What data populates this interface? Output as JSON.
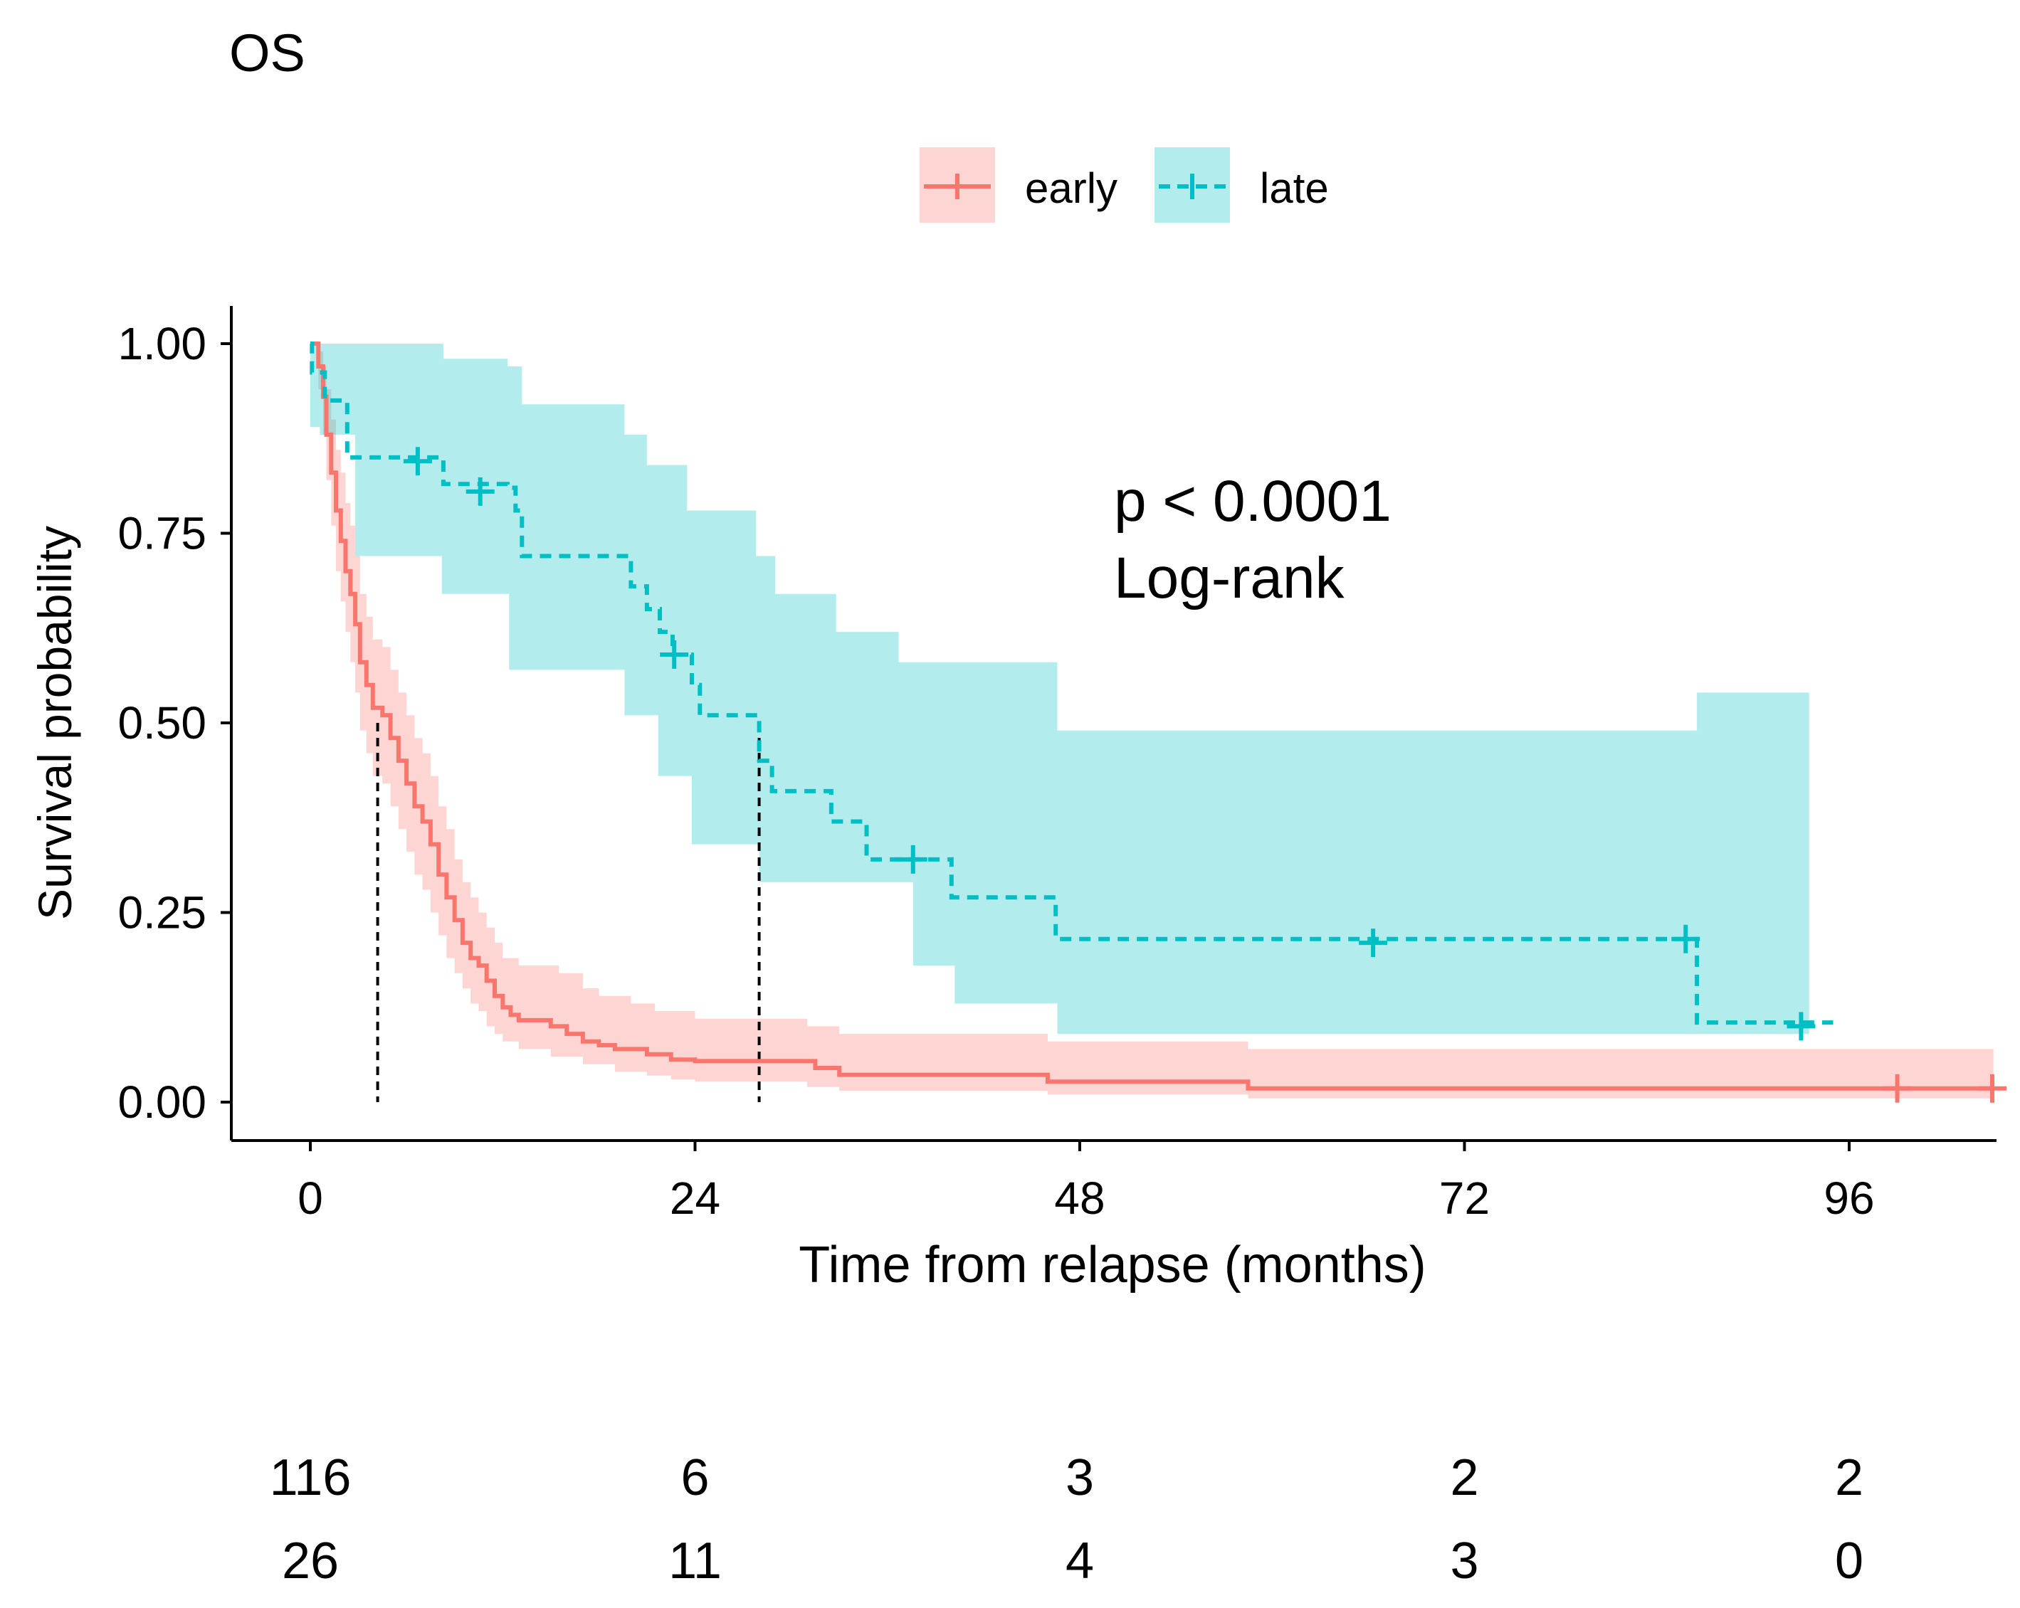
{
  "chart_data": {
    "type": "line",
    "subtype": "kaplan-meier",
    "title": "OS",
    "xlabel": "Time from relapse (months)",
    "ylabel": "Survival probability",
    "xlim": [
      0,
      102
    ],
    "ylim": [
      0,
      1
    ],
    "x_ticks": [
      0,
      24,
      48,
      72,
      96
    ],
    "y_ticks": [
      0.0,
      0.25,
      0.5,
      0.75,
      1.0
    ],
    "y_tick_labels": [
      "0.00",
      "0.25",
      "0.50",
      "0.75",
      "1.00"
    ],
    "annotation": [
      "p < 0.0001",
      "Log-rank"
    ],
    "legend_position": "top",
    "grid": false,
    "series": [
      {
        "name": "early",
        "color": "#F8766D",
        "fill": "#F8766D",
        "linestyle": "solid",
        "steps": [
          [
            0,
            1.0
          ],
          [
            0.5,
            0.97
          ],
          [
            0.8,
            0.93
          ],
          [
            1.0,
            0.88
          ],
          [
            1.3,
            0.83
          ],
          [
            1.6,
            0.78
          ],
          [
            1.9,
            0.74
          ],
          [
            2.2,
            0.7
          ],
          [
            2.5,
            0.67
          ],
          [
            2.8,
            0.63
          ],
          [
            3.1,
            0.58
          ],
          [
            3.5,
            0.55
          ],
          [
            3.9,
            0.52
          ],
          [
            4.5,
            0.51
          ],
          [
            5.0,
            0.48
          ],
          [
            5.5,
            0.45
          ],
          [
            6.0,
            0.42
          ],
          [
            6.5,
            0.39
          ],
          [
            7.0,
            0.37
          ],
          [
            7.5,
            0.34
          ],
          [
            8.0,
            0.3
          ],
          [
            8.5,
            0.27
          ],
          [
            9.0,
            0.24
          ],
          [
            9.5,
            0.21
          ],
          [
            10.0,
            0.19
          ],
          [
            10.5,
            0.18
          ],
          [
            11.0,
            0.16
          ],
          [
            11.5,
            0.14
          ],
          [
            12.0,
            0.125
          ],
          [
            12.5,
            0.115
          ],
          [
            13.0,
            0.108
          ],
          [
            15.0,
            0.1
          ],
          [
            16.0,
            0.09
          ],
          [
            17.0,
            0.08
          ],
          [
            18.0,
            0.075
          ],
          [
            19.0,
            0.07
          ],
          [
            21.0,
            0.063
          ],
          [
            22.5,
            0.056
          ],
          [
            24.0,
            0.054
          ],
          [
            30.0,
            0.054
          ],
          [
            31.5,
            0.045
          ],
          [
            33.0,
            0.036
          ],
          [
            46.0,
            0.027
          ],
          [
            58.5,
            0.018
          ],
          [
            105,
            0.018
          ]
        ],
        "upper": [
          [
            0,
            1.0
          ],
          [
            0.5,
            0.99
          ],
          [
            0.8,
            0.97
          ],
          [
            1.0,
            0.94
          ],
          [
            1.3,
            0.9
          ],
          [
            1.6,
            0.86
          ],
          [
            1.9,
            0.83
          ],
          [
            2.2,
            0.79
          ],
          [
            2.5,
            0.76
          ],
          [
            2.8,
            0.72
          ],
          [
            3.1,
            0.67
          ],
          [
            3.5,
            0.64
          ],
          [
            3.9,
            0.61
          ],
          [
            4.5,
            0.6
          ],
          [
            5.0,
            0.57
          ],
          [
            5.5,
            0.54
          ],
          [
            6.0,
            0.51
          ],
          [
            6.5,
            0.48
          ],
          [
            7.0,
            0.46
          ],
          [
            7.5,
            0.43
          ],
          [
            8.0,
            0.39
          ],
          [
            8.5,
            0.36
          ],
          [
            9.0,
            0.32
          ],
          [
            9.5,
            0.29
          ],
          [
            10.0,
            0.27
          ],
          [
            10.5,
            0.25
          ],
          [
            11.0,
            0.23
          ],
          [
            11.5,
            0.21
          ],
          [
            12.0,
            0.19
          ],
          [
            13.0,
            0.18
          ],
          [
            15.5,
            0.17
          ],
          [
            17.0,
            0.15
          ],
          [
            18.0,
            0.14
          ],
          [
            20.0,
            0.13
          ],
          [
            21.5,
            0.12
          ],
          [
            24.0,
            0.11
          ],
          [
            29.0,
            0.11
          ],
          [
            31.0,
            0.1
          ],
          [
            33.0,
            0.09
          ],
          [
            46.0,
            0.08
          ],
          [
            58.5,
            0.07
          ],
          [
            105,
            0.07
          ]
        ],
        "lower": [
          [
            0,
            1.0
          ],
          [
            0.5,
            0.94
          ],
          [
            0.8,
            0.88
          ],
          [
            1.0,
            0.82
          ],
          [
            1.3,
            0.76
          ],
          [
            1.6,
            0.7
          ],
          [
            1.9,
            0.66
          ],
          [
            2.2,
            0.62
          ],
          [
            2.5,
            0.58
          ],
          [
            2.8,
            0.54
          ],
          [
            3.1,
            0.49
          ],
          [
            3.5,
            0.46
          ],
          [
            3.9,
            0.43
          ],
          [
            4.5,
            0.42
          ],
          [
            5.0,
            0.39
          ],
          [
            5.5,
            0.36
          ],
          [
            6.0,
            0.33
          ],
          [
            6.5,
            0.3
          ],
          [
            7.0,
            0.28
          ],
          [
            7.5,
            0.25
          ],
          [
            8.0,
            0.22
          ],
          [
            8.5,
            0.19
          ],
          [
            9.0,
            0.17
          ],
          [
            9.5,
            0.15
          ],
          [
            10.0,
            0.13
          ],
          [
            10.5,
            0.12
          ],
          [
            11.0,
            0.1
          ],
          [
            11.5,
            0.09
          ],
          [
            12.0,
            0.08
          ],
          [
            13.0,
            0.07
          ],
          [
            15.0,
            0.06
          ],
          [
            17.0,
            0.05
          ],
          [
            19.0,
            0.04
          ],
          [
            21.0,
            0.035
          ],
          [
            22.5,
            0.03
          ],
          [
            24.0,
            0.027
          ],
          [
            31.0,
            0.02
          ],
          [
            33.0,
            0.015
          ],
          [
            46.0,
            0.01
          ],
          [
            58.5,
            0.005
          ],
          [
            105,
            0.005
          ]
        ],
        "censored": [
          [
            99.0,
            0.018
          ],
          [
            105.0,
            0.018
          ]
        ],
        "median": 4.2
      },
      {
        "name": "late",
        "color": "#00BFC4",
        "fill": "#00BFC4",
        "linestyle": "dashed",
        "steps": [
          [
            0,
            1.0
          ],
          [
            0.1,
            0.962
          ],
          [
            0.9,
            0.925
          ],
          [
            2.3,
            0.85
          ],
          [
            8.3,
            0.815
          ],
          [
            12.3,
            0.81
          ],
          [
            12.8,
            0.78
          ],
          [
            13.2,
            0.72
          ],
          [
            20.0,
            0.68
          ],
          [
            21.0,
            0.65
          ],
          [
            21.8,
            0.62
          ],
          [
            22.6,
            0.59
          ],
          [
            23.8,
            0.55
          ],
          [
            24.3,
            0.51
          ],
          [
            28.0,
            0.45
          ],
          [
            28.8,
            0.41
          ],
          [
            32.5,
            0.37
          ],
          [
            34.7,
            0.32
          ],
          [
            40.0,
            0.27
          ],
          [
            46.5,
            0.215
          ],
          [
            86.5,
            0.105
          ],
          [
            95,
            0.105
          ]
        ],
        "upper": [
          [
            0,
            1.0
          ],
          [
            8.3,
            0.98
          ],
          [
            12.3,
            0.97
          ],
          [
            13.2,
            0.92
          ],
          [
            19.6,
            0.88
          ],
          [
            21.0,
            0.84
          ],
          [
            23.5,
            0.78
          ],
          [
            27.8,
            0.72
          ],
          [
            29.0,
            0.67
          ],
          [
            32.8,
            0.62
          ],
          [
            36.7,
            0.58
          ],
          [
            46.6,
            0.49
          ],
          [
            86.5,
            0.54
          ],
          [
            93.5,
            0.54
          ]
        ],
        "lower": [
          [
            0,
            0.89
          ],
          [
            0.6,
            0.88
          ],
          [
            2.8,
            0.72
          ],
          [
            8.2,
            0.67
          ],
          [
            12.4,
            0.57
          ],
          [
            19.6,
            0.51
          ],
          [
            21.7,
            0.43
          ],
          [
            23.8,
            0.34
          ],
          [
            28.0,
            0.29
          ],
          [
            37.6,
            0.18
          ],
          [
            40.2,
            0.13
          ],
          [
            46.6,
            0.09
          ],
          [
            93.5,
            0.09
          ]
        ],
        "censored": [
          [
            6.7,
            0.845
          ],
          [
            10.6,
            0.805
          ],
          [
            22.7,
            0.59
          ],
          [
            37.6,
            0.32
          ],
          [
            66.3,
            0.21
          ],
          [
            85.8,
            0.215
          ],
          [
            93.0,
            0.1
          ]
        ],
        "median": 28.0
      }
    ],
    "risk_table": {
      "times": [
        0,
        24,
        48,
        72,
        96
      ],
      "rows": [
        {
          "name": "early",
          "values": [
            "116",
            "6",
            "3",
            "2",
            "2"
          ]
        },
        {
          "name": "late",
          "values": [
            "26",
            "11",
            "4",
            "3",
            "0"
          ]
        }
      ]
    }
  }
}
